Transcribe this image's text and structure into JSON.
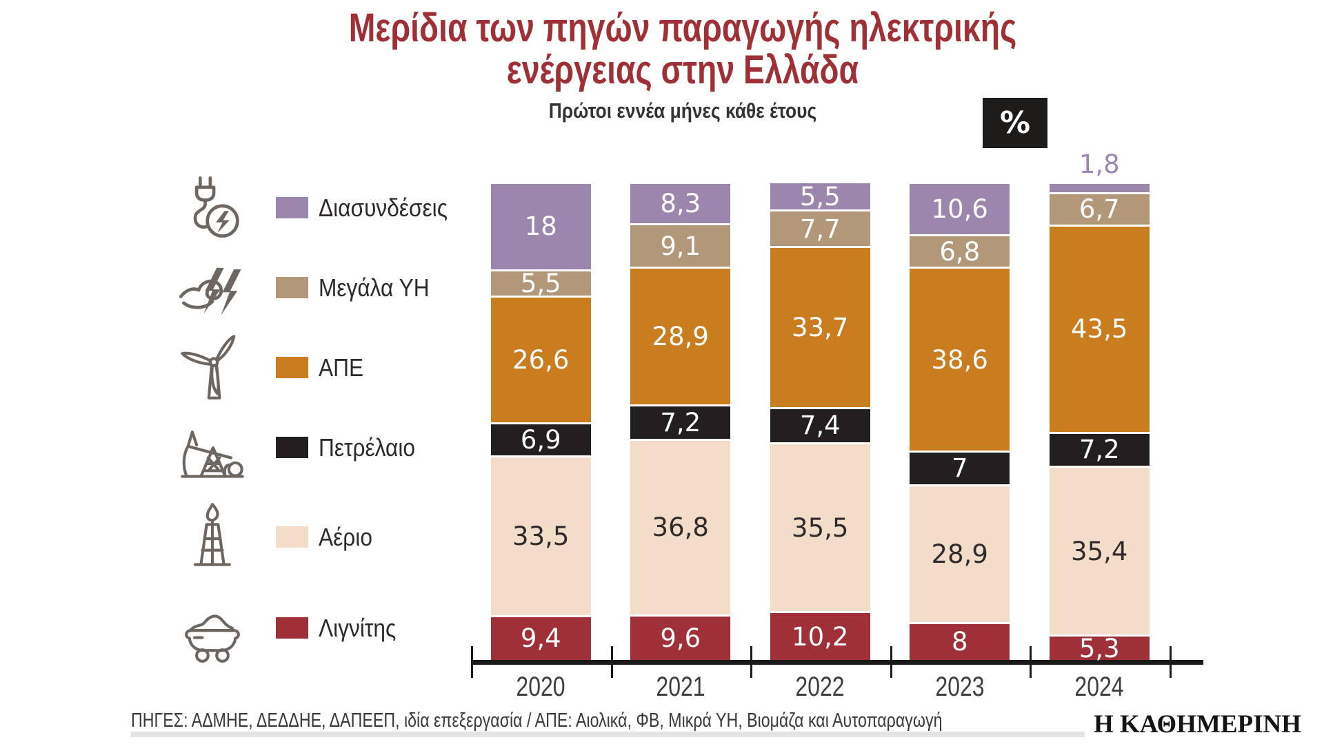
{
  "title": {
    "line1": "Μερίδια των πηγών παραγωγής ηλεκτρικής",
    "line2": "ενέργειας στην Ελλάδα"
  },
  "subtitle": "Πρώτοι εννέα μήνες κάθε έτους",
  "unit_badge": "%",
  "legend": [
    {
      "name": "Διασυνδέσεις",
      "color": "#9b87ae",
      "icon": "plug-icon"
    },
    {
      "name": "Μεγάλα ΥΗ",
      "color": "#b29878",
      "icon": "hydro-icon"
    },
    {
      "name": "ΑΠΕ",
      "color": "#c97d1e",
      "icon": "wind-turbine-icon"
    },
    {
      "name": "Πετρέλαιο",
      "color": "#231f20",
      "icon": "oil-pump-icon"
    },
    {
      "name": "Αέριο",
      "color": "#f3ddc8",
      "icon": "gas-flare-icon"
    },
    {
      "name": "Λιγνίτης",
      "color": "#9f3037",
      "icon": "coal-cart-icon"
    }
  ],
  "chart_data": {
    "type": "bar",
    "stacked": true,
    "unit": "%",
    "title": "Μερίδια των πηγών παραγωγής ηλεκτρικής ενέργειας στην Ελλάδα",
    "subtitle": "Πρώτοι εννέα μήνες κάθε έτους",
    "categories": [
      "2020",
      "2021",
      "2022",
      "2023",
      "2024"
    ],
    "series": [
      {
        "name": "Διασυνδέσεις",
        "color": "#9b87ae",
        "text_color": "#ffffff",
        "values": [
          18,
          8.3,
          5.5,
          10.6,
          1.8
        ],
        "labels": [
          "18",
          "8,3",
          "5,5",
          "10,6",
          "1,8"
        ]
      },
      {
        "name": "Μεγάλα ΥΗ",
        "color": "#b29878",
        "text_color": "#ffffff",
        "values": [
          5.5,
          9.1,
          7.7,
          6.8,
          6.7
        ],
        "labels": [
          "5,5",
          "9,1",
          "7,7",
          "6,8",
          "6,7"
        ]
      },
      {
        "name": "ΑΠΕ",
        "color": "#c97d1e",
        "text_color": "#ffffff",
        "values": [
          26.6,
          28.9,
          33.7,
          38.6,
          43.5
        ],
        "labels": [
          "26,6",
          "28,9",
          "33,7",
          "38,6",
          "43,5"
        ]
      },
      {
        "name": "Πετρέλαιο",
        "color": "#231f20",
        "text_color": "#ffffff",
        "values": [
          6.9,
          7.2,
          7.4,
          7,
          7.2
        ],
        "labels": [
          "6,9",
          "7,2",
          "7,4",
          "7",
          "7,2"
        ]
      },
      {
        "name": "Αέριο",
        "color": "#f3ddc8",
        "text_color": "#2f2a2b",
        "values": [
          33.5,
          36.8,
          35.5,
          28.9,
          35.4
        ],
        "labels": [
          "33,5",
          "36,8",
          "35,5",
          "28,9",
          "35,4"
        ]
      },
      {
        "name": "Λιγνίτης",
        "color": "#9f3037",
        "text_color": "#ffffff",
        "values": [
          9.4,
          9.6,
          10.2,
          8,
          5.3
        ],
        "labels": [
          "9,4",
          "9,6",
          "10,2",
          "8",
          "5,3"
        ]
      }
    ],
    "outside_label": {
      "series_index": 0,
      "category_index": 4,
      "color": "#9b87b5"
    },
    "ylim": [
      0,
      100
    ],
    "grid": false,
    "legend_position": "left"
  },
  "footer": {
    "sources": "ΠΗΓΕΣ: ΑΔΜΗΕ, ΔΕΔΔΗΕ, ΔΑΠΕΕΠ, ιδία επεξεργασία / ΑΠΕ: Αιολικά, ΦΒ, Μικρά ΥΗ, Βιομάζα και Αυτοπαραγωγή",
    "brand": "Η ΚΑΘΗΜΕΡΙΝΗ"
  }
}
